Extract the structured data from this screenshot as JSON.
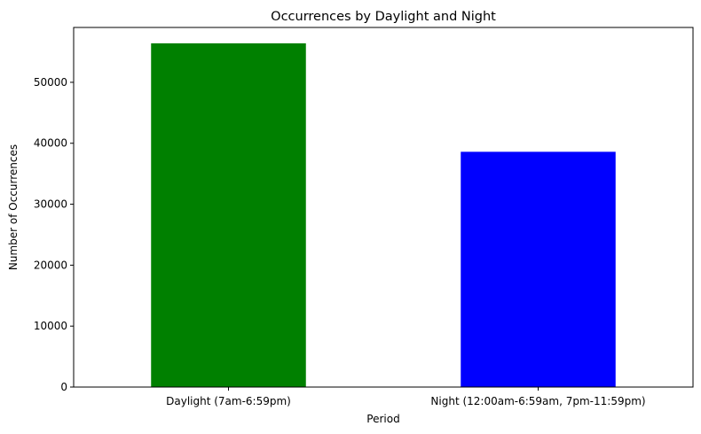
{
  "chart_data": {
    "type": "bar",
    "title": "Occurrences by Daylight and Night",
    "xlabel": "Period",
    "ylabel": "Number of Occurrences",
    "categories": [
      "Daylight (7am-6:59pm)",
      "Night (12:00am-6:59am, 7pm-11:59pm)"
    ],
    "values": [
      56400,
      38600
    ],
    "colors": [
      "#008000",
      "#0000ff"
    ],
    "ylim": [
      0,
      59000
    ],
    "yticks": [
      0,
      10000,
      20000,
      30000,
      40000,
      50000
    ],
    "ytick_labels": [
      "0",
      "10000",
      "20000",
      "30000",
      "40000",
      "50000"
    ],
    "grid": false,
    "legend": "none"
  }
}
